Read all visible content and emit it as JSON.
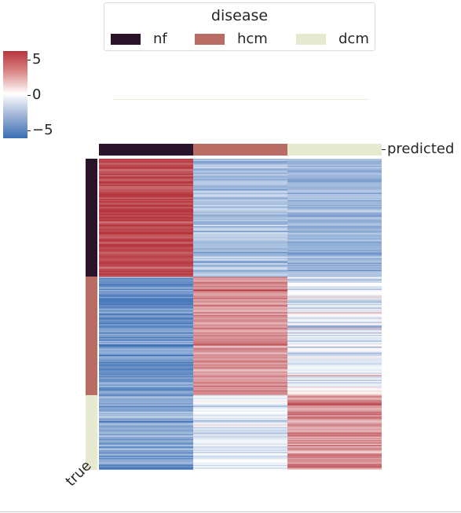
{
  "legend": {
    "title": "disease",
    "items": [
      {
        "label": "nf",
        "color": "#2a1429"
      },
      {
        "label": "hcm",
        "color": "#b86c64"
      },
      {
        "label": "dcm",
        "color": "#e6ead1"
      }
    ]
  },
  "colorbar": {
    "ticks": [
      {
        "value": 5,
        "label": "5"
      },
      {
        "value": 0,
        "label": "0"
      },
      {
        "value": -5,
        "label": "−5"
      }
    ],
    "range": [
      -6.1,
      6.1
    ],
    "cmap": "vlag",
    "colors": {
      "low": "#3a6eb5",
      "mid": "#ffffff",
      "high": "#b5343c"
    }
  },
  "axes": {
    "xlabel": "predicted",
    "ylabel": "true"
  },
  "chart_data": {
    "type": "heatmap",
    "title": "",
    "columns": [
      "nf",
      "hcm",
      "dcm"
    ],
    "row_groups": [
      {
        "name": "nf",
        "fraction": 0.38,
        "col_means": [
          5.5,
          -2.6,
          -3.1
        ],
        "noise": [
          0.55,
          0.7,
          0.6
        ]
      },
      {
        "name": "hcm",
        "fraction": 0.38,
        "col_means": [
          -4.6,
          3.3,
          -0.8
        ],
        "noise": [
          0.85,
          0.7,
          1.1
        ]
      },
      {
        "name": "dcm",
        "fraction": 0.24,
        "col_means": [
          -3.6,
          -0.7,
          3.3
        ],
        "noise": [
          0.75,
          0.8,
          0.8
        ]
      }
    ],
    "col_colors": [
      "#2a1429",
      "#b86c64",
      "#e6ead1"
    ],
    "vmin": -6.1,
    "vmax": 6.1,
    "center": 0
  }
}
